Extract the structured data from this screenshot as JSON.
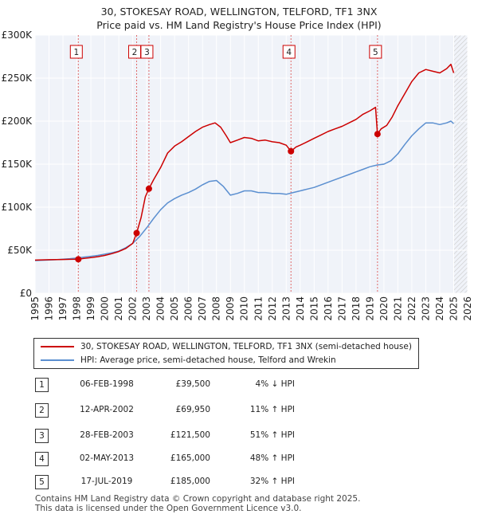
{
  "title": {
    "line1": "30, STOKESAY ROAD, WELLINGTON, TELFORD, TF1 3NX",
    "line2": "Price paid vs. HM Land Registry's House Price Index (HPI)"
  },
  "chart_data": {
    "type": "line",
    "xlim": [
      1995,
      2026
    ],
    "ylim": [
      0,
      300000
    ],
    "x_ticks": [
      "1995",
      "1996",
      "1997",
      "1998",
      "1999",
      "2000",
      "2001",
      "2002",
      "2003",
      "2004",
      "2005",
      "2006",
      "2007",
      "2008",
      "2009",
      "2010",
      "2011",
      "2012",
      "2013",
      "2014",
      "2015",
      "2016",
      "2017",
      "2018",
      "2019",
      "2020",
      "2021",
      "2022",
      "2023",
      "2024",
      "2025",
      "2026"
    ],
    "y_ticks": [
      {
        "value": 0,
        "label": "£0"
      },
      {
        "value": 50000,
        "label": "£50K"
      },
      {
        "value": 100000,
        "label": "£100K"
      },
      {
        "value": 150000,
        "label": "£150K"
      },
      {
        "value": 200000,
        "label": "£200K"
      },
      {
        "value": 250000,
        "label": "£250K"
      },
      {
        "value": 300000,
        "label": "£300K"
      }
    ],
    "grid": true,
    "series": [
      {
        "name": "30, STOKESAY ROAD, WELLINGTON, TELFORD, TF1 3NX (semi-detached house)",
        "color": "#cc0000",
        "x": [
          1995.0,
          1995.5,
          1996.0,
          1996.5,
          1997.0,
          1997.5,
          1998.1,
          1998.5,
          1999.0,
          1999.5,
          2000.0,
          2000.5,
          2001.0,
          2001.5,
          2002.0,
          2002.28,
          2002.6,
          2002.9,
          2003.16,
          2003.5,
          2004.0,
          2004.5,
          2005.0,
          2005.5,
          2006.0,
          2006.5,
          2007.0,
          2007.5,
          2007.9,
          2008.3,
          2008.7,
          2009.0,
          2009.5,
          2010.0,
          2010.5,
          2011.0,
          2011.5,
          2012.0,
          2012.5,
          2013.0,
          2013.34,
          2013.7,
          2014.0,
          2014.5,
          2015.0,
          2015.5,
          2016.0,
          2016.5,
          2017.0,
          2017.5,
          2018.0,
          2018.5,
          2019.0,
          2019.4,
          2019.54,
          2019.8,
          2020.2,
          2020.6,
          2021.0,
          2021.5,
          2022.0,
          2022.5,
          2023.0,
          2023.5,
          2024.0,
          2024.5,
          2024.8,
          2025.0
        ],
        "y": [
          38500,
          38800,
          39000,
          39200,
          39300,
          39400,
          39500,
          40500,
          41500,
          42500,
          44000,
          46000,
          48500,
          52000,
          58000,
          69950,
          88000,
          112000,
          121500,
          132000,
          146000,
          163000,
          171000,
          176000,
          182000,
          188000,
          193000,
          196000,
          198000,
          193000,
          183000,
          175000,
          178000,
          181000,
          180000,
          177000,
          178000,
          176000,
          175000,
          172000,
          165000,
          170000,
          172000,
          176000,
          180000,
          184000,
          188000,
          191000,
          194000,
          198000,
          202000,
          208000,
          212000,
          216000,
          185000,
          191000,
          195000,
          205000,
          218000,
          232000,
          246000,
          256000,
          260000,
          258000,
          256000,
          261000,
          266000,
          256000
        ]
      },
      {
        "name": "HPI: Average price, semi-detached house, Telford and Wrekin",
        "color": "#5b8fd0",
        "x": [
          1995.0,
          1995.5,
          1996.0,
          1996.5,
          1997.0,
          1997.5,
          1998.0,
          1998.5,
          1999.0,
          1999.5,
          2000.0,
          2000.5,
          2001.0,
          2001.5,
          2002.0,
          2002.5,
          2003.0,
          2003.5,
          2004.0,
          2004.5,
          2005.0,
          2005.5,
          2006.0,
          2006.5,
          2007.0,
          2007.5,
          2008.0,
          2008.5,
          2009.0,
          2009.5,
          2010.0,
          2010.5,
          2011.0,
          2011.5,
          2012.0,
          2012.5,
          2013.0,
          2013.5,
          2014.0,
          2014.5,
          2015.0,
          2015.5,
          2016.0,
          2016.5,
          2017.0,
          2017.5,
          2018.0,
          2018.5,
          2019.0,
          2019.5,
          2020.0,
          2020.5,
          2021.0,
          2021.5,
          2022.0,
          2022.5,
          2023.0,
          2023.5,
          2024.0,
          2024.5,
          2024.8,
          2025.0
        ],
        "y": [
          38000,
          38300,
          38600,
          39000,
          39500,
          40200,
          41000,
          42000,
          43000,
          44000,
          45500,
          47000,
          49000,
          53000,
          58000,
          66000,
          76000,
          87000,
          97000,
          105000,
          110000,
          114000,
          117000,
          121000,
          126000,
          130000,
          131000,
          124000,
          114000,
          116000,
          119000,
          119000,
          117000,
          117000,
          116000,
          116000,
          115000,
          117000,
          119000,
          121000,
          123000,
          126000,
          129000,
          132000,
          135000,
          138000,
          141000,
          144000,
          147000,
          149000,
          150000,
          154000,
          162000,
          173000,
          183000,
          191000,
          198000,
          198000,
          196000,
          198000,
          200000,
          197000
        ]
      }
    ],
    "transactions": [
      {
        "n": "1",
        "x": 1998.1,
        "y": 39500,
        "date": "06-FEB-1998",
        "price": "£39,500",
        "hpi": "4% ↓ HPI"
      },
      {
        "n": "2",
        "x": 2002.28,
        "y": 69950,
        "date": "12-APR-2002",
        "price": "£69,950",
        "hpi": "11% ↑ HPI"
      },
      {
        "n": "3",
        "x": 2003.16,
        "y": 121500,
        "date": "28-FEB-2003",
        "price": "£121,500",
        "hpi": "51% ↑ HPI"
      },
      {
        "n": "4",
        "x": 2013.34,
        "y": 165000,
        "date": "02-MAY-2013",
        "price": "£165,000",
        "hpi": "48% ↑ HPI"
      },
      {
        "n": "5",
        "x": 2019.54,
        "y": 185000,
        "date": "17-JUL-2019",
        "price": "£185,000",
        "hpi": "32% ↑ HPI"
      }
    ],
    "hatch_from": 2025.0,
    "marker_color": "#cc0000",
    "vline_color": "#e06a6a"
  },
  "legend": {
    "property_label": "30, STOKESAY ROAD, WELLINGTON, TELFORD, TF1 3NX (semi-detached house)",
    "hpi_label": "HPI: Average price, semi-detached house, Telford and Wrekin"
  },
  "footer": {
    "line1": "Contains HM Land Registry data © Crown copyright and database right 2025.",
    "line2": "This data is licensed under the Open Government Licence v3.0."
  }
}
